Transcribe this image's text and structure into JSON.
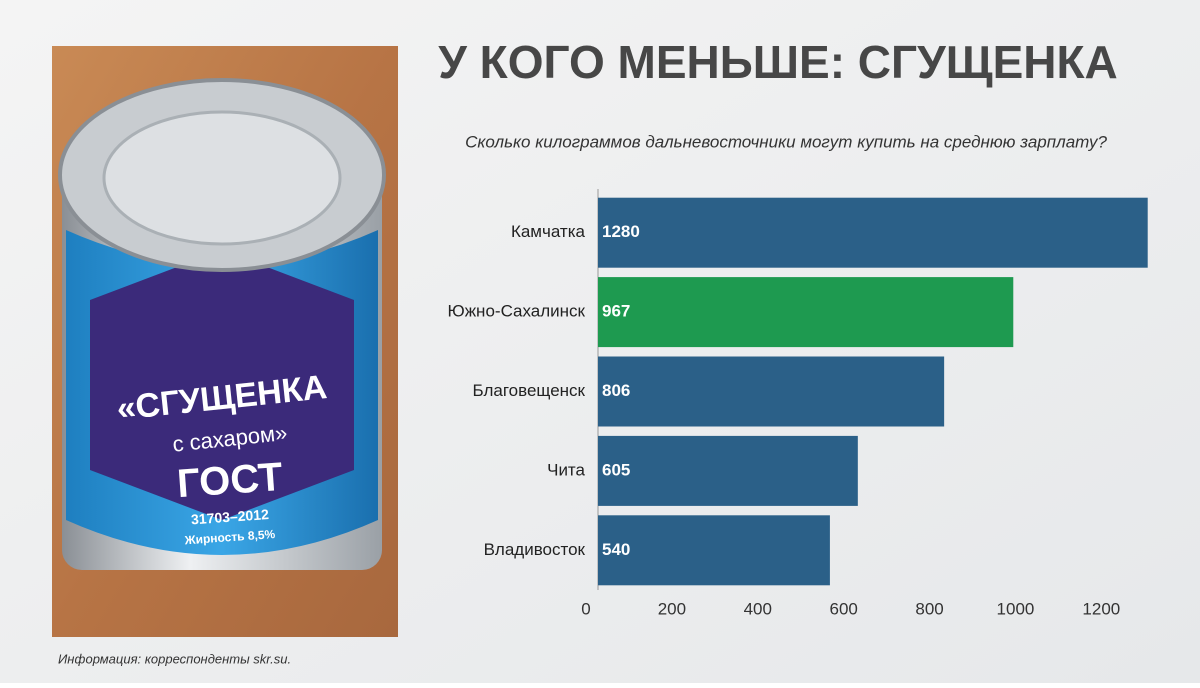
{
  "chart_data": {
    "type": "bar",
    "orientation": "horizontal",
    "title": "У КОГО МЕНЬШЕ: СГУЩЕНКА",
    "subtitle": "Сколько килограммов дальневосточники могут купить на среднюю зарплату?",
    "categories": [
      "Камчатка",
      "Южно-Сахалинск",
      "Благовещенск",
      "Чита",
      "Владивосток"
    ],
    "values": [
      1280,
      967,
      806,
      605,
      540
    ],
    "colors": [
      "#2b6088",
      "#1e9a50",
      "#2b6088",
      "#2b6088",
      "#2b6088"
    ],
    "xlim": [
      0,
      1290
    ],
    "xticks": [
      0,
      200,
      400,
      600,
      800,
      1000,
      1200
    ]
  },
  "photo": {
    "brand": "«СГУЩЕНКА",
    "subbrand": "с сахаром»",
    "standard": "ГОСТ",
    "code": "31703–2012",
    "fat": "Жирность 8,5%"
  },
  "footer": "Информация: корреспонденты skr.su."
}
